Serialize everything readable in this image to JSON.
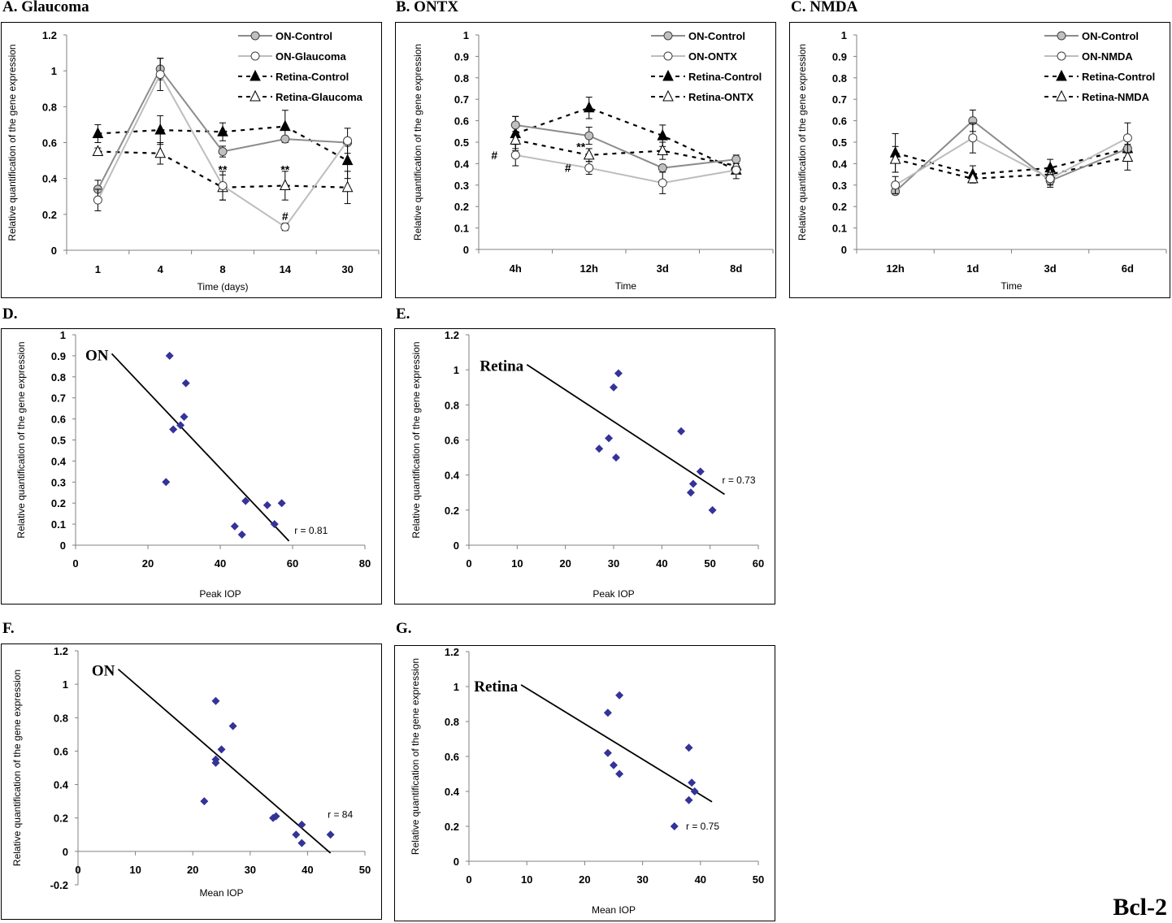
{
  "figure": {
    "gene_label": "Bcl-2",
    "colors": {
      "on_control": "#8c8c8c",
      "on_treated": "#bdbdbd",
      "retina": "#000000",
      "scatter_marker": "#333399",
      "fit_line": "#000000"
    }
  },
  "chart_data": [
    {
      "id": "A",
      "panel_label": "A. Glaucoma",
      "type": "line",
      "title": "",
      "xlabel": "Time (days)",
      "ylabel": "Relative quantification of the gene expression",
      "categories": [
        "1",
        "4",
        "8",
        "14",
        "30"
      ],
      "ylim": [
        0,
        1.2
      ],
      "yticks": [
        "0",
        "0.2",
        "0.4",
        "0.6",
        "0.8",
        "1",
        "1.2"
      ],
      "grid": false,
      "legend_position": "top-right",
      "series": [
        {
          "name": "ON-Control",
          "style": "solid-gray-filled-circle",
          "values": [
            0.34,
            1.01,
            0.55,
            0.62,
            0.6
          ],
          "errors": [
            0.05,
            0.06,
            0.03,
            0.0,
            0.0
          ]
        },
        {
          "name": "ON-Glaucoma",
          "style": "solid-lightgray-open-circle",
          "values": [
            0.28,
            0.98,
            0.36,
            0.13,
            0.61
          ],
          "errors": [
            0.06,
            0.09,
            0.08,
            0.02,
            0.07
          ]
        },
        {
          "name": "Retina-Control",
          "style": "dashed-black-filled-triangle",
          "values": [
            0.65,
            0.67,
            0.66,
            0.69,
            0.5
          ],
          "errors": [
            0.05,
            0.08,
            0.05,
            0.09,
            0.1
          ]
        },
        {
          "name": "Retina-Glaucoma",
          "style": "dashed-black-open-triangle",
          "values": [
            0.55,
            0.54,
            0.35,
            0.36,
            0.35
          ],
          "errors": [
            0.02,
            0.06,
            0.07,
            0.08,
            0.09
          ]
        }
      ],
      "annotations": [
        {
          "text": "**",
          "x": "8",
          "y": 0.45
        },
        {
          "text": "**",
          "x": "14",
          "y": 0.45
        },
        {
          "text": "#",
          "x": "14",
          "y": 0.19
        }
      ]
    },
    {
      "id": "B",
      "panel_label": "B. ONTX",
      "type": "line",
      "title": "",
      "xlabel": "Time",
      "ylabel": "Relative quantification of the gene expression",
      "categories": [
        "4h",
        "12h",
        "3d",
        "8d"
      ],
      "ylim": [
        0,
        1
      ],
      "yticks": [
        "0",
        "0.1",
        "0.2",
        "0.3",
        "0.4",
        "0.5",
        "0.6",
        "0.7",
        "0.8",
        "0.9",
        "1"
      ],
      "grid": false,
      "legend_position": "top-right",
      "series": [
        {
          "name": "ON-Control",
          "style": "solid-gray-filled-circle",
          "values": [
            0.58,
            0.53,
            0.38,
            0.42
          ],
          "errors": [
            0.04,
            0.04,
            0.0,
            0.02
          ]
        },
        {
          "name": "ON-ONTX",
          "style": "solid-lightgray-open-circle",
          "values": [
            0.44,
            0.38,
            0.31,
            0.37
          ],
          "errors": [
            0.05,
            0.03,
            0.05,
            0.0
          ]
        },
        {
          "name": "Retina-Control",
          "style": "dashed-black-filled-triangle",
          "values": [
            0.54,
            0.66,
            0.53,
            0.37
          ],
          "errors": [
            0.08,
            0.05,
            0.05,
            0.04
          ]
        },
        {
          "name": "Retina-ONTX",
          "style": "dashed-black-open-triangle",
          "values": [
            0.51,
            0.44,
            0.46,
            0.39
          ],
          "errors": [
            0.04,
            0.03,
            0.04,
            0.0
          ]
        }
      ],
      "annotations": [
        {
          "text": "#",
          "x": "4h",
          "y": 0.44
        },
        {
          "text": "**",
          "x": "12h",
          "y": 0.48
        },
        {
          "text": "#",
          "x": "12h",
          "y": 0.38
        }
      ]
    },
    {
      "id": "C",
      "panel_label": "C. NMDA",
      "type": "line",
      "title": "",
      "xlabel": "Time",
      "ylabel": "Relative quantification of the gene expression",
      "categories": [
        "12h",
        "1d",
        "3d",
        "6d"
      ],
      "ylim": [
        0,
        1
      ],
      "yticks": [
        "0",
        "0.1",
        "0.2",
        "0.3",
        "0.4",
        "0.5",
        "0.6",
        "0.7",
        "0.8",
        "0.9",
        "1"
      ],
      "grid": false,
      "legend_position": "top-right",
      "series": [
        {
          "name": "ON-Control",
          "style": "solid-gray-filled-circle",
          "values": [
            0.27,
            0.6,
            0.32,
            0.47
          ],
          "errors": [
            0.0,
            0.05,
            0.03,
            0.0
          ]
        },
        {
          "name": "ON-NMDA",
          "style": "solid-lightgray-open-circle",
          "values": [
            0.3,
            0.52,
            0.33,
            0.52
          ],
          "errors": [
            0.04,
            0.07,
            0.03,
            0.07
          ]
        },
        {
          "name": "Retina-Control",
          "style": "dashed-black-filled-triangle",
          "values": [
            0.45,
            0.35,
            0.38,
            0.47
          ],
          "errors": [
            0.09,
            0.04,
            0.04,
            0.05
          ]
        },
        {
          "name": "Retina-NMDA",
          "style": "dashed-black-open-triangle",
          "values": [
            0.42,
            0.33,
            0.35,
            0.43
          ],
          "errors": [
            0.06,
            0.02,
            0.02,
            0.06
          ]
        }
      ],
      "annotations": []
    },
    {
      "id": "D",
      "panel_label": "D.",
      "type": "scatter",
      "title": "",
      "inset_label": "ON",
      "xlabel": "Peak IOP",
      "ylabel": "Relative quantification of the gene expression",
      "xlim": [
        0,
        80
      ],
      "xticks": [
        "0",
        "20",
        "40",
        "60",
        "80"
      ],
      "ylim": [
        0,
        1
      ],
      "yticks": [
        "0",
        "0.1",
        "0.2",
        "0.3",
        "0.4",
        "0.5",
        "0.6",
        "0.7",
        "0.8",
        "0.9",
        "1"
      ],
      "grid": false,
      "points": [
        [
          26,
          0.9
        ],
        [
          30.5,
          0.77
        ],
        [
          30,
          0.61
        ],
        [
          29,
          0.57
        ],
        [
          27,
          0.55
        ],
        [
          25,
          0.3
        ],
        [
          47,
          0.21
        ],
        [
          53,
          0.19
        ],
        [
          57,
          0.2
        ],
        [
          55,
          0.1
        ],
        [
          44,
          0.09
        ],
        [
          46,
          0.05
        ]
      ],
      "fit_line": [
        [
          10,
          0.91
        ],
        [
          59,
          0.02
        ]
      ],
      "r_label": "r = 0.81"
    },
    {
      "id": "E",
      "panel_label": "E.",
      "type": "scatter",
      "title": "",
      "inset_label": "Retina",
      "xlabel": "Peak IOP",
      "ylabel": "Relative quantification of the gene expression",
      "xlim": [
        0,
        60
      ],
      "xticks": [
        "0",
        "10",
        "20",
        "30",
        "40",
        "50",
        "60"
      ],
      "ylim": [
        0,
        1.2
      ],
      "yticks": [
        "0",
        "0.2",
        "0.4",
        "0.6",
        "0.8",
        "1",
        "1.2"
      ],
      "grid": false,
      "points": [
        [
          31,
          0.98
        ],
        [
          30,
          0.9
        ],
        [
          29,
          0.61
        ],
        [
          27,
          0.55
        ],
        [
          30.5,
          0.5
        ],
        [
          44,
          0.65
        ],
        [
          48,
          0.42
        ],
        [
          46.5,
          0.35
        ],
        [
          46,
          0.3
        ],
        [
          50.5,
          0.2
        ]
      ],
      "fit_line": [
        [
          12,
          1.03
        ],
        [
          53,
          0.29
        ]
      ],
      "r_label": "r = 0.73"
    },
    {
      "id": "F",
      "panel_label": "F.",
      "type": "scatter",
      "title": "",
      "inset_label": "ON",
      "xlabel": "Mean IOP",
      "ylabel": "Relative quantification of the gene expression",
      "xlim": [
        0,
        50
      ],
      "xticks": [
        "0",
        "10",
        "20",
        "30",
        "40",
        "50"
      ],
      "ylim": [
        -0.2,
        1.2
      ],
      "yticks": [
        "-0.2",
        "0",
        "0.2",
        "0.4",
        "0.6",
        "0.8",
        "1",
        "1.2"
      ],
      "grid": false,
      "points": [
        [
          24,
          0.9
        ],
        [
          27,
          0.75
        ],
        [
          25,
          0.61
        ],
        [
          24,
          0.55
        ],
        [
          24,
          0.53
        ],
        [
          22,
          0.3
        ],
        [
          34,
          0.2
        ],
        [
          34.5,
          0.21
        ],
        [
          39,
          0.16
        ],
        [
          38,
          0.1
        ],
        [
          39,
          0.05
        ],
        [
          44,
          0.1
        ]
      ],
      "fit_line": [
        [
          7,
          1.09
        ],
        [
          44,
          -0.01
        ]
      ],
      "r_label": "r = 84"
    },
    {
      "id": "G",
      "panel_label": "G.",
      "type": "scatter",
      "title": "",
      "inset_label": "Retina",
      "xlabel": "Mean IOP",
      "ylabel": "Relative quantification of the gene expression",
      "xlim": [
        0,
        50
      ],
      "xticks": [
        "0",
        "10",
        "20",
        "30",
        "40",
        "50"
      ],
      "ylim": [
        0,
        1.2
      ],
      "yticks": [
        "0",
        "0.2",
        "0.4",
        "0.6",
        "0.8",
        "1",
        "1.2"
      ],
      "grid": false,
      "points": [
        [
          26,
          0.95
        ],
        [
          24,
          0.85
        ],
        [
          24,
          0.62
        ],
        [
          25,
          0.55
        ],
        [
          26,
          0.5
        ],
        [
          38,
          0.65
        ],
        [
          38.5,
          0.45
        ],
        [
          39,
          0.4
        ],
        [
          38,
          0.35
        ],
        [
          35.5,
          0.2
        ]
      ],
      "fit_line": [
        [
          9,
          1.01
        ],
        [
          42,
          0.34
        ]
      ],
      "r_label": "r = 0.75"
    }
  ]
}
